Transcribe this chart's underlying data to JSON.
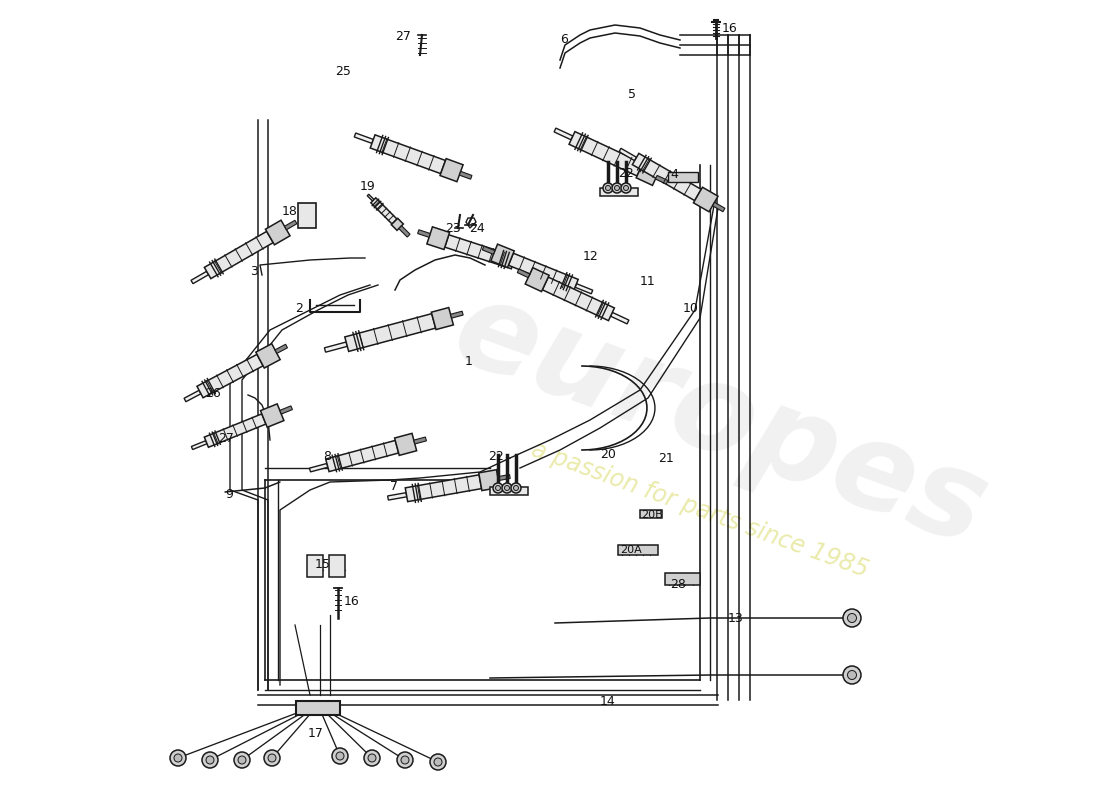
{
  "background_color": "#ffffff",
  "line_color": "#1a1a1a",
  "label_color": "#111111",
  "comp_fill": "#e8e8e8",
  "comp_fill2": "#d0d0d0",
  "wm_color1": "#c0c0c0",
  "wm_color2": "#c8c820",
  "figsize": [
    11.0,
    8.0
  ],
  "dpi": 100,
  "part_numbers": [
    "1",
    "2",
    "3",
    "4",
    "5",
    "6",
    "7",
    "8",
    "9",
    "10",
    "11",
    "12",
    "13",
    "14",
    "15",
    "16",
    "17",
    "18",
    "19",
    "20",
    "20A",
    "20B",
    "21",
    "22",
    "23",
    "24",
    "25",
    "26",
    "27",
    "28"
  ]
}
